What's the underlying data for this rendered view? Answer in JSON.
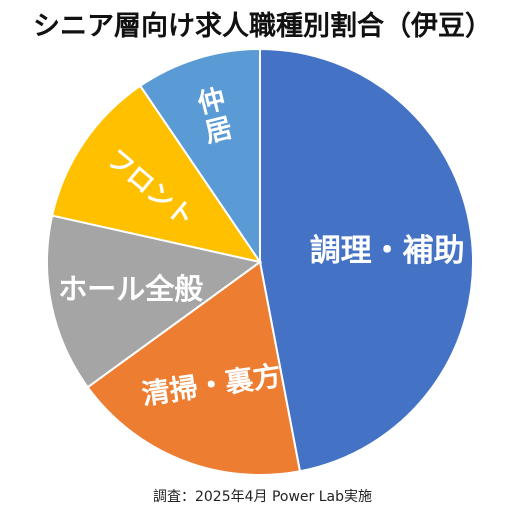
{
  "chart_data": {
    "type": "pie",
    "title": "シニア層向け求人職種別割合（伊豆）",
    "start_angle_deg": 0,
    "direction": "clockwise",
    "slices": [
      {
        "label": "調理・補助",
        "value": 47.0,
        "color": "#4472C4"
      },
      {
        "label": "清掃・裏方",
        "value": 18.0,
        "color": "#ED7D31"
      },
      {
        "label": "ホール全般",
        "value": 13.5,
        "color": "#A5A5A5"
      },
      {
        "label": "フロント",
        "value": 12.0,
        "color": "#FFC000"
      },
      {
        "label": "仲居",
        "value": 9.5,
        "color": "#5B9BD5"
      }
    ],
    "label_color": "#ffffff"
  },
  "footnote": "調査：2025年4月 Power Lab実施"
}
